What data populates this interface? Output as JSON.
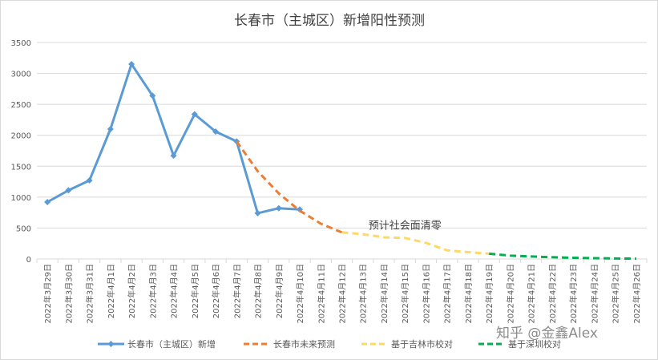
{
  "chart_data": {
    "type": "line",
    "title": "长春市（主城区）新增阳性预测",
    "ylim": [
      0,
      3500
    ],
    "yticks": [
      0,
      500,
      1000,
      1500,
      2000,
      2500,
      3000,
      3500
    ],
    "grid": true,
    "legend_position": "bottom",
    "categories": [
      "2022年3月29日",
      "2022年3月30日",
      "2022年3月31日",
      "2022年4月1日",
      "2022年4月2日",
      "2022年4月3日",
      "2022年4月4日",
      "2022年4月5日",
      "2022年4月6日",
      "2022年4月7日",
      "2022年4月8日",
      "2022年4月9日",
      "2022年4月10日",
      "2022年4月11日",
      "2022年4月12日",
      "2022年4月13日",
      "2022年4月14日",
      "2022年4月15日",
      "2022年4月16日",
      "2022年4月17日",
      "2022年4月18日",
      "2022年4月19日",
      "2022年4月20日",
      "2022年4月21日",
      "2022年4月22日",
      "2022年4月23日",
      "2022年4月24日",
      "2022年4月25日",
      "2022年4月26日"
    ],
    "series": [
      {
        "name": "长春市（主城区）新增",
        "color": "#5b9bd5",
        "style": "solid-marker",
        "values": [
          920,
          1110,
          1270,
          2100,
          3150,
          2640,
          1670,
          2340,
          2060,
          1900,
          740,
          820,
          800,
          null,
          null,
          null,
          null,
          null,
          null,
          null,
          null,
          null,
          null,
          null,
          null,
          null,
          null,
          null,
          null
        ]
      },
      {
        "name": "长春市未来预测",
        "color": "#ed7d31",
        "style": "dashed",
        "values": [
          null,
          null,
          null,
          null,
          null,
          null,
          null,
          null,
          null,
          1900,
          1420,
          1060,
          780,
          570,
          430,
          null,
          null,
          null,
          null,
          null,
          null,
          null,
          null,
          null,
          null,
          null,
          null,
          null,
          null
        ]
      },
      {
        "name": "基于吉林市校对",
        "color": "#ffd966",
        "style": "dashed",
        "values": [
          null,
          null,
          null,
          null,
          null,
          null,
          null,
          null,
          null,
          null,
          null,
          null,
          null,
          null,
          430,
          400,
          350,
          340,
          260,
          140,
          110,
          85,
          null,
          null,
          null,
          null,
          null,
          null,
          null
        ]
      },
      {
        "name": "基于深圳校对",
        "color": "#00b050",
        "style": "dashed",
        "values": [
          null,
          null,
          null,
          null,
          null,
          null,
          null,
          null,
          null,
          null,
          null,
          null,
          null,
          null,
          null,
          null,
          null,
          null,
          null,
          null,
          null,
          85,
          55,
          40,
          28,
          20,
          13,
          8,
          5
        ]
      }
    ],
    "annotations": [
      {
        "text": "预计社会面清零",
        "x": "2022年4月15日",
        "y": 540
      }
    ]
  },
  "watermark": "知乎 @金鑫Alex"
}
